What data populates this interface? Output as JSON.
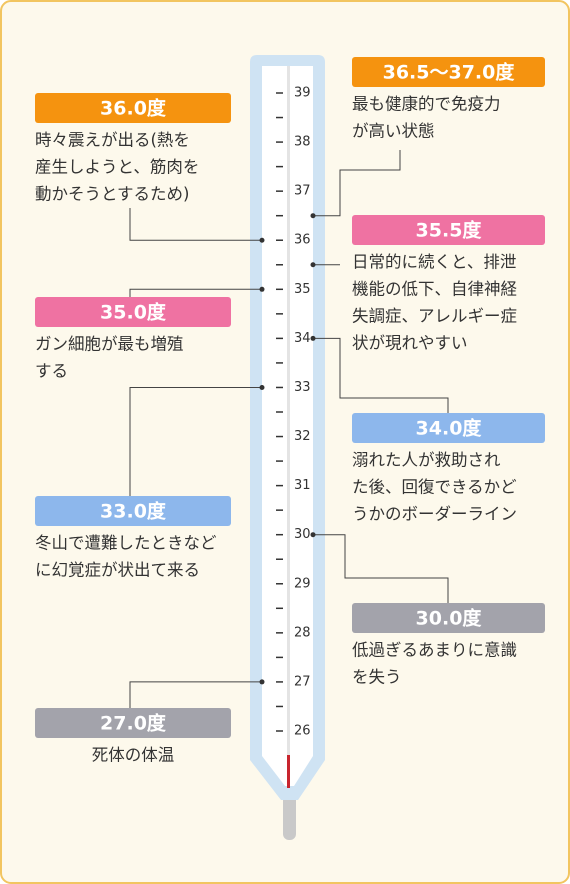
{
  "scale": {
    "ticks": [
      26,
      27,
      28,
      29,
      30,
      31,
      32,
      33,
      34,
      35,
      36,
      37,
      38,
      39
    ]
  },
  "notes": [
    {
      "label": "36.0度",
      "value": 36,
      "color": "#f5930f",
      "lines": [
        "時々震えが出る(熱を",
        "産生しようと、筋肉を",
        "動かそうとするため)"
      ]
    },
    {
      "label": "35.0度",
      "value": 35,
      "color": "#ef72a2",
      "lines": [
        "ガン細胞が最も増殖",
        "する"
      ]
    },
    {
      "label": "33.0度",
      "value": 33,
      "color": "#8db7ec",
      "lines": [
        "冬山で遭難したときなど",
        "に幻覚症が状出て来る"
      ]
    },
    {
      "label": "27.0度",
      "value": 27,
      "color": "#a3a3ab",
      "lines": [
        "死体の体温"
      ]
    },
    {
      "label": "36.5～37.0度",
      "value": 36.5,
      "color": "#f5930f",
      "lines": [
        "最も健康的で免疫力",
        "が高い状態"
      ]
    },
    {
      "label": "35.5度",
      "value": 35.5,
      "color": "#ef72a2",
      "lines": [
        "日常的に続くと、排泄",
        "機能の低下、自律神経",
        "失調症、アレルギー症",
        "状が現れやすい"
      ]
    },
    {
      "label": "34.0度",
      "value": 34,
      "color": "#8db7ec",
      "lines": [
        "溺れた人が救助され",
        "た後、回復できるかど",
        "うかのボーダーライン"
      ]
    },
    {
      "label": "30.0度",
      "value": 30,
      "color": "#a3a3ab",
      "lines": [
        "低過ぎるあまりに意識",
        "を失う"
      ]
    }
  ]
}
